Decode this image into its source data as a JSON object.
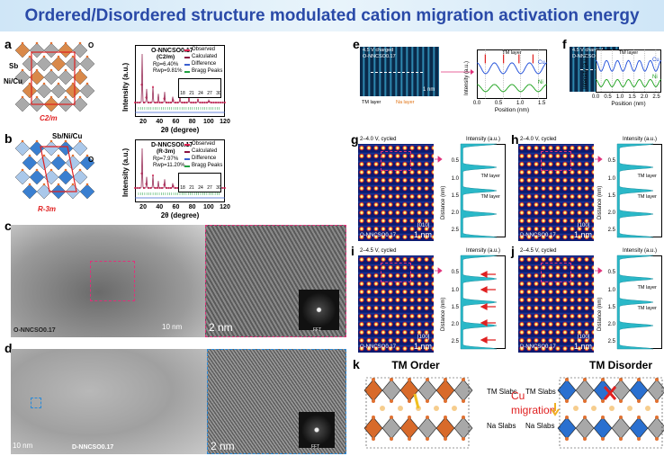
{
  "title": "Ordered/Disordered structure modulated cation migration activation energy",
  "a": {
    "letter": "a",
    "atoms": [
      "O",
      "Sb",
      "Ni/Cu"
    ],
    "space_group": "C2/m",
    "sample": "O-NNCSO0.17",
    "phase": "(C2/m)",
    "fit": [
      "Rp=6.40%",
      "Rwp=9.81%"
    ],
    "legend": [
      "Observed",
      "Calculated",
      "Difference",
      "Bragg Peaks"
    ],
    "ylabel": "Intensity (a.u.)",
    "xlabel": "2θ (degree)",
    "xticks": [
      "20",
      "40",
      "60",
      "80",
      "100",
      "120"
    ],
    "inset_ticks": [
      "18",
      "21",
      "24",
      "27",
      "30"
    ]
  },
  "b": {
    "letter": "b",
    "atoms": [
      "Sb/Ni/Cu",
      "O"
    ],
    "space_group": "R-3m",
    "sample": "D-NNCSO0.17",
    "phase": "(R-3m)",
    "fit": [
      "Rp=7.97%",
      "Rwp=11.20%"
    ],
    "legend": [
      "Observed",
      "Calculated",
      "Difference",
      "Bragg Peaks"
    ],
    "ylabel": "Intensity (a.u.)",
    "xlabel": "2θ (degree)",
    "xticks": [
      "20",
      "40",
      "60",
      "80",
      "100",
      "120"
    ],
    "inset_ticks": [
      "18",
      "21",
      "24",
      "27",
      "30"
    ]
  },
  "c": {
    "letter": "c",
    "scale_wide": "10 nm",
    "scale_zoom": "2 nm",
    "fft": "FFT",
    "sample": "O-NNCSO0.17"
  },
  "d": {
    "letter": "d",
    "scale_wide": "10 nm",
    "scale_zoom": "2 nm",
    "fft": "FFT",
    "sample": "D-NNCSO0.17"
  },
  "e": {
    "letter": "e",
    "condition": "4.5 V charged",
    "sample": "O-NNCSO0.17",
    "scale": "1 nm",
    "layers": [
      "TM layer",
      "Na layer"
    ],
    "ylabel": "Intensity (a.u.)",
    "xlabel": "Position (nm)",
    "xticks": [
      "0.0",
      "0.5",
      "1.0",
      "1.5"
    ],
    "peak_label": "TM layer",
    "series": [
      "Cu",
      "Ni"
    ]
  },
  "f": {
    "letter": "f",
    "condition": "4.5 V charged",
    "sample": "D-NNCSO0.17",
    "scale": "1 nm",
    "ylabel": "Intensity (a.u.)",
    "xlabel": "Position (nm)",
    "xticks": [
      "0.0",
      "0.5",
      "1.0",
      "1.5",
      "2.0",
      "2.5"
    ],
    "peak_label": "TM layer",
    "series": [
      "Cu",
      "Ni"
    ]
  },
  "g": {
    "letter": "g",
    "condition": "2–4.0 V, cycled",
    "zone": "[010]",
    "sample": "O-NNCSO0.17",
    "scale": "1 nm",
    "xlabel": "Intensity (a.u.)",
    "ylabel": "Distance (nm)",
    "yticks": [
      "0.5",
      "1.0",
      "1.5",
      "2.0",
      "2.5"
    ],
    "peak_labels": [
      "TM layer",
      "TM layer"
    ]
  },
  "h": {
    "letter": "h",
    "condition": "2–4.0 V, cycled",
    "zone": "[100]",
    "sample": "D-NNCSO0.17",
    "scale": "1 nm",
    "xlabel": "Intensity (a.u.)",
    "ylabel": "Distance (nm)",
    "yticks": [
      "0.5",
      "1.0",
      "1.5",
      "2.0",
      "2.5"
    ],
    "peak_labels": [
      "TM layer",
      "TM layer"
    ]
  },
  "i": {
    "letter": "i",
    "condition": "2–4.5 V, cycled",
    "zone": "[100]",
    "sample": "O-NNCSO0.17",
    "scale": "1 nm",
    "xlabel": "Intensity (a.u.)",
    "ylabel": "Distance (nm)",
    "yticks": [
      "0.5",
      "1.0",
      "1.5",
      "2.0",
      "2.5"
    ]
  },
  "j": {
    "letter": "j",
    "condition": "2–4.5 V, cycled",
    "zone": "[100]",
    "sample": "D-NNCSO0.17",
    "scale": "1 nm",
    "xlabel": "Intensity (a.u.)",
    "ylabel": "Distance (nm)",
    "yticks": [
      "0.5",
      "1.0",
      "1.5",
      "2.0",
      "2.5"
    ],
    "peak_labels": [
      "TM layer",
      "TM layer"
    ]
  },
  "k": {
    "letter": "k",
    "left": "TM Order",
    "right": "TM Disorder",
    "slabs": [
      "TM Slabs",
      "Na Slabs"
    ],
    "migration": [
      "Cu",
      "migration"
    ]
  }
}
